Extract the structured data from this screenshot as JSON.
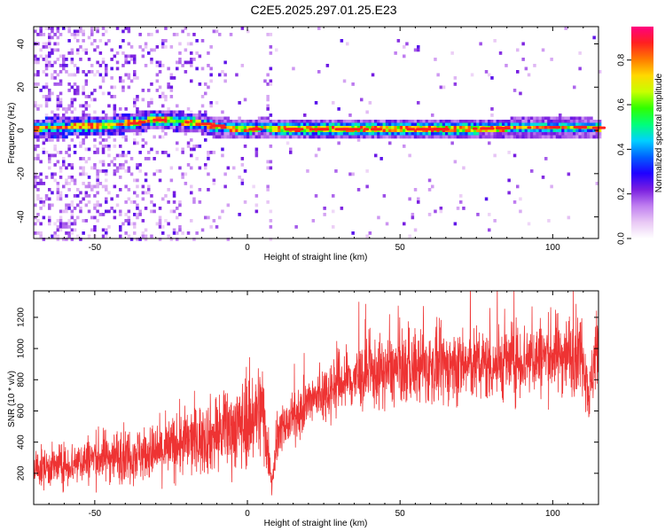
{
  "title": "C2E5.2025.297.01.25.E23",
  "chart_data": [
    {
      "type": "heatmap",
      "xlabel": "Height of straight line (km)",
      "ylabel": "Frequency (Hz)",
      "xlim": [
        -70,
        115
      ],
      "ylim": [
        -50,
        48
      ],
      "xticks": [
        -50,
        0,
        50,
        100
      ],
      "yticks": [
        -40,
        -20,
        0,
        20,
        40
      ],
      "colorbar": {
        "label": "Normalized spectral amplitude",
        "range": [
          0.0,
          0.95
        ],
        "ticks": [
          "0.0",
          "0.2",
          "0.4",
          "0.6",
          "0.8"
        ],
        "colors": [
          "#ffffff",
          "#e9c9f5",
          "#c07ff0",
          "#7a1fe0",
          "#1f00ff",
          "#0060ff",
          "#00d0ff",
          "#00ff7a",
          "#30ff00",
          "#c8ff00",
          "#ffd800",
          "#ff7a00",
          "#ff2020",
          "#ff0080"
        ]
      },
      "band_centerline": [
        [
          -70,
          1.0
        ],
        [
          -60,
          1.5
        ],
        [
          -50,
          2.0
        ],
        [
          -40,
          3.0
        ],
        [
          -30,
          5.0
        ],
        [
          -25,
          4.5
        ],
        [
          -15,
          3.0
        ],
        [
          -10,
          1.5
        ],
        [
          0,
          0.5
        ],
        [
          5,
          1.5
        ],
        [
          10,
          0.5
        ],
        [
          20,
          0.5
        ],
        [
          40,
          0.5
        ],
        [
          60,
          0.5
        ],
        [
          80,
          1.0
        ],
        [
          100,
          1.5
        ],
        [
          110,
          1.5
        ],
        [
          115,
          1.0
        ]
      ]
    },
    {
      "type": "line",
      "xlabel": "Height of straight line (km)",
      "ylabel": "SNR (10 * v/v)",
      "xlim": [
        -70,
        115
      ],
      "ylim": [
        0,
        1370
      ],
      "xticks": [
        -50,
        0,
        50,
        100
      ],
      "yticks": [
        200,
        400,
        600,
        800,
        1000,
        1200
      ],
      "line_color": "#ee3333",
      "trend": [
        [
          -70,
          230
        ],
        [
          -60,
          250
        ],
        [
          -50,
          300
        ],
        [
          -40,
          320
        ],
        [
          -30,
          330
        ],
        [
          -20,
          400
        ],
        [
          -10,
          450
        ],
        [
          0,
          530
        ],
        [
          5,
          620
        ],
        [
          8,
          150
        ],
        [
          10,
          450
        ],
        [
          20,
          650
        ],
        [
          30,
          780
        ],
        [
          40,
          830
        ],
        [
          50,
          870
        ],
        [
          60,
          880
        ],
        [
          70,
          890
        ],
        [
          80,
          900
        ],
        [
          90,
          930
        ],
        [
          100,
          960
        ],
        [
          110,
          980
        ],
        [
          112,
          680
        ],
        [
          114,
          1000
        ],
        [
          115,
          980
        ]
      ]
    }
  ]
}
